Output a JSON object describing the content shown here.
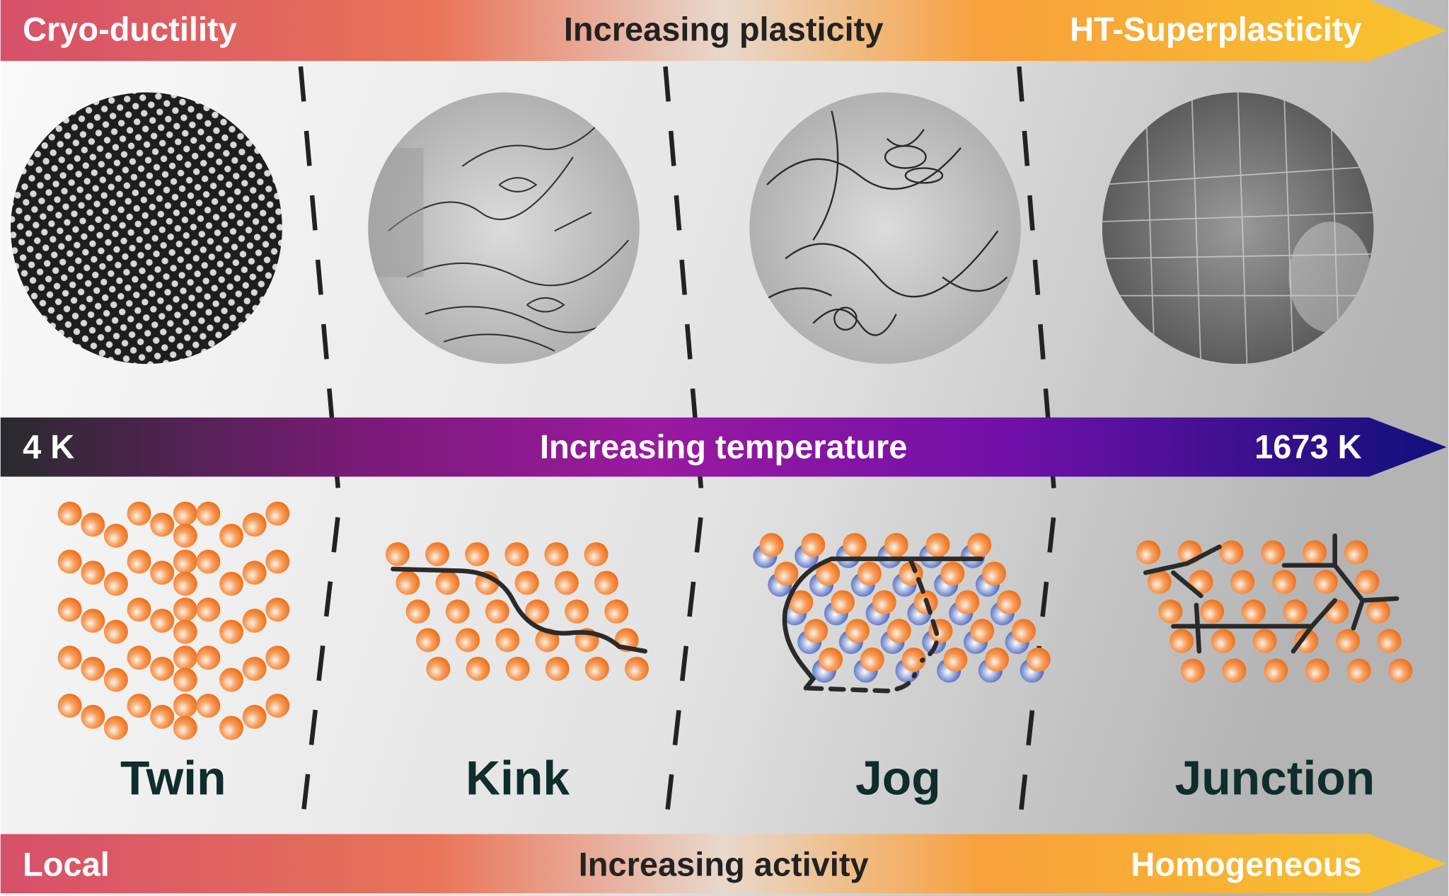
{
  "top_bar": {
    "left": "Cryo-ductility",
    "center": "Increasing plasticity",
    "right": "HT-Superplasticity"
  },
  "middle_bar": {
    "left": "4 K",
    "center": "Increasing temperature",
    "right": "1673 K"
  },
  "bottom_bar": {
    "left": "Local",
    "center": "Increasing activity",
    "right": "Homogeneous"
  },
  "panels": [
    {
      "label": "Twin"
    },
    {
      "label": "Kink"
    },
    {
      "label": "Jog"
    },
    {
      "label": "Junction"
    }
  ],
  "colors": {
    "atom_orange": "#f07820",
    "atom_blue": "#3a55b0",
    "label": "#0f2d2a",
    "line": "#2a2a2a"
  }
}
